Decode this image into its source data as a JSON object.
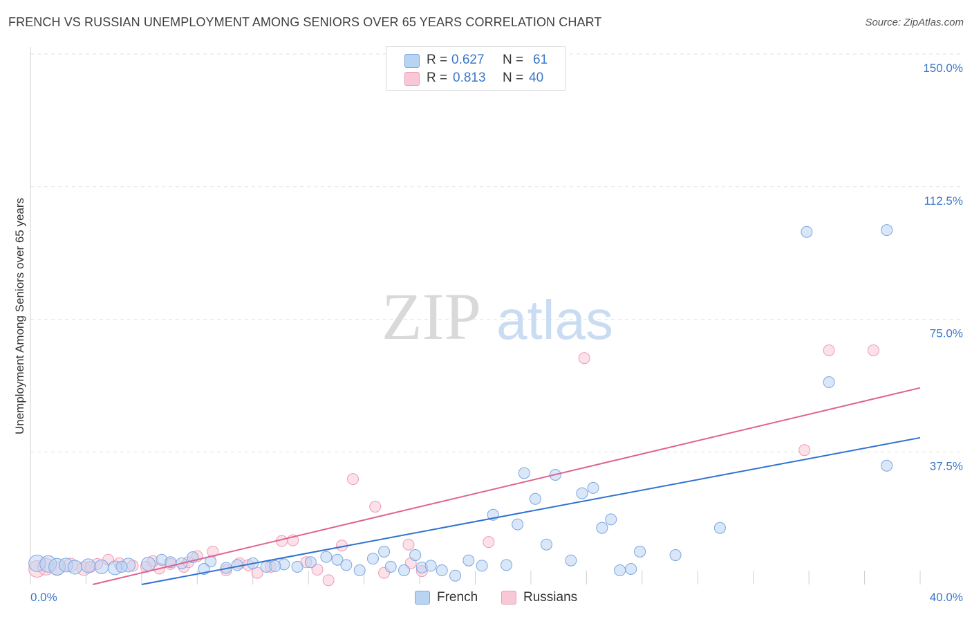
{
  "header": {
    "title": "FRENCH VS RUSSIAN UNEMPLOYMENT AMONG SENIORS OVER 65 YEARS CORRELATION CHART",
    "source": "Source: ZipAtlas.com"
  },
  "legend": {
    "r_label": "R =",
    "n_label": "N =",
    "rows": [
      {
        "r": "0.627",
        "n": "61"
      },
      {
        "r": "0.813",
        "n": "40"
      }
    ]
  },
  "bottom_legend": [
    "French",
    "Russians"
  ],
  "watermark": {
    "zip": "ZIP",
    "atlas": "atlas"
  },
  "colors": {
    "french_fill": "#b9d3f3",
    "french_stroke": "#7aa7e0",
    "french_line": "#2f72d0",
    "russian_fill": "#f9c8d7",
    "russian_stroke": "#ee9cb6",
    "russian_line": "#e0628f",
    "axis_label": "#3a78c8",
    "grid": "#e2e2e2"
  },
  "chart_data": {
    "type": "scatter",
    "title": "FRENCH VS RUSSIAN UNEMPLOYMENT AMONG SENIORS OVER 65 YEARS CORRELATION CHART",
    "xlabel": "",
    "ylabel": "Unemployment Among Seniors over 65 years",
    "xlim": [
      0,
      40
    ],
    "ylim": [
      0,
      150
    ],
    "x_tick_labels": [
      "0.0%",
      "40.0%"
    ],
    "y_ticks": [
      37.5,
      75.0,
      112.5,
      150.0
    ],
    "y_tick_labels": [
      "37.5%",
      "75.0%",
      "112.5%",
      "150.0%"
    ],
    "grid": true,
    "legend_position": "top-center",
    "series": [
      {
        "name": "French",
        "r": 0.627,
        "n": 61,
        "trend": {
          "x": [
            5.0,
            40.0
          ],
          "y": [
            0.0,
            41.5
          ]
        },
        "points": [
          {
            "x": 0.3,
            "y": 6.0,
            "s": 3
          },
          {
            "x": 0.8,
            "y": 5.8,
            "s": 3
          },
          {
            "x": 1.2,
            "y": 5.0,
            "s": 3
          },
          {
            "x": 1.6,
            "y": 5.5,
            "s": 2
          },
          {
            "x": 2.0,
            "y": 4.9,
            "s": 2
          },
          {
            "x": 2.6,
            "y": 5.3,
            "s": 2
          },
          {
            "x": 3.2,
            "y": 5.0,
            "s": 2
          },
          {
            "x": 3.8,
            "y": 4.7,
            "s": 2
          },
          {
            "x": 4.4,
            "y": 5.5,
            "s": 2
          },
          {
            "x": 5.3,
            "y": 5.8,
            "s": 2
          },
          {
            "x": 5.9,
            "y": 7.0,
            "s": 1
          },
          {
            "x": 6.3,
            "y": 6.3,
            "s": 1
          },
          {
            "x": 6.8,
            "y": 6.0,
            "s": 1
          },
          {
            "x": 7.3,
            "y": 7.7,
            "s": 1
          },
          {
            "x": 8.1,
            "y": 6.5,
            "s": 1
          },
          {
            "x": 8.8,
            "y": 4.7,
            "s": 1
          },
          {
            "x": 9.3,
            "y": 5.5,
            "s": 1
          },
          {
            "x": 10.0,
            "y": 6.0,
            "s": 1
          },
          {
            "x": 10.6,
            "y": 5.0,
            "s": 1
          },
          {
            "x": 11.4,
            "y": 5.7,
            "s": 1
          },
          {
            "x": 12.0,
            "y": 5.0,
            "s": 1
          },
          {
            "x": 12.6,
            "y": 6.3,
            "s": 1
          },
          {
            "x": 13.3,
            "y": 7.8,
            "s": 1
          },
          {
            "x": 13.8,
            "y": 7.0,
            "s": 1
          },
          {
            "x": 14.2,
            "y": 5.5,
            "s": 1
          },
          {
            "x": 14.8,
            "y": 4.0,
            "s": 1
          },
          {
            "x": 15.4,
            "y": 7.3,
            "s": 1
          },
          {
            "x": 16.2,
            "y": 5.0,
            "s": 1
          },
          {
            "x": 15.9,
            "y": 9.3,
            "s": 1
          },
          {
            "x": 16.8,
            "y": 4.0,
            "s": 1
          },
          {
            "x": 17.6,
            "y": 4.8,
            "s": 1
          },
          {
            "x": 17.3,
            "y": 8.3,
            "s": 1
          },
          {
            "x": 18.0,
            "y": 5.3,
            "s": 1
          },
          {
            "x": 18.5,
            "y": 4.0,
            "s": 1
          },
          {
            "x": 19.1,
            "y": 2.5,
            "s": 1
          },
          {
            "x": 19.7,
            "y": 6.8,
            "s": 1
          },
          {
            "x": 20.3,
            "y": 5.3,
            "s": 1
          },
          {
            "x": 20.8,
            "y": 19.7,
            "s": 1
          },
          {
            "x": 21.4,
            "y": 5.5,
            "s": 1
          },
          {
            "x": 21.9,
            "y": 17.0,
            "s": 1
          },
          {
            "x": 22.2,
            "y": 31.5,
            "s": 1
          },
          {
            "x": 22.7,
            "y": 24.2,
            "s": 1
          },
          {
            "x": 23.2,
            "y": 11.3,
            "s": 1
          },
          {
            "x": 23.6,
            "y": 31.0,
            "s": 1
          },
          {
            "x": 24.3,
            "y": 6.8,
            "s": 1
          },
          {
            "x": 24.8,
            "y": 25.8,
            "s": 1
          },
          {
            "x": 25.3,
            "y": 27.3,
            "s": 1
          },
          {
            "x": 25.7,
            "y": 16.0,
            "s": 1
          },
          {
            "x": 26.1,
            "y": 18.4,
            "s": 1
          },
          {
            "x": 26.5,
            "y": 4.0,
            "s": 1
          },
          {
            "x": 27.4,
            "y": 9.3,
            "s": 1
          },
          {
            "x": 27.0,
            "y": 4.4,
            "s": 1
          },
          {
            "x": 29.0,
            "y": 8.3,
            "s": 1
          },
          {
            "x": 31.0,
            "y": 16.0,
            "s": 1
          },
          {
            "x": 34.9,
            "y": 99.7,
            "s": 1
          },
          {
            "x": 38.5,
            "y": 100.2,
            "s": 1
          },
          {
            "x": 35.9,
            "y": 57.2,
            "s": 1
          },
          {
            "x": 38.5,
            "y": 33.6,
            "s": 1
          },
          {
            "x": 4.1,
            "y": 5.0,
            "s": 1
          },
          {
            "x": 11.0,
            "y": 5.2,
            "s": 1
          },
          {
            "x": 7.8,
            "y": 4.4,
            "s": 1
          }
        ]
      },
      {
        "name": "Russians",
        "r": 0.813,
        "n": 40,
        "trend": {
          "x": [
            2.8,
            40.0
          ],
          "y": [
            0.0,
            55.6
          ]
        },
        "points": [
          {
            "x": 0.3,
            "y": 4.4,
            "s": 3
          },
          {
            "x": 0.7,
            "y": 5.0,
            "s": 3
          },
          {
            "x": 1.2,
            "y": 4.5,
            "s": 2
          },
          {
            "x": 1.8,
            "y": 5.5,
            "s": 2
          },
          {
            "x": 2.4,
            "y": 4.5,
            "s": 2
          },
          {
            "x": 3.0,
            "y": 5.8,
            "s": 1
          },
          {
            "x": 3.5,
            "y": 7.0,
            "s": 1
          },
          {
            "x": 4.0,
            "y": 6.0,
            "s": 1
          },
          {
            "x": 4.6,
            "y": 5.3,
            "s": 1
          },
          {
            "x": 5.2,
            "y": 5.0,
            "s": 1
          },
          {
            "x": 5.8,
            "y": 4.5,
            "s": 1
          },
          {
            "x": 6.3,
            "y": 5.8,
            "s": 1
          },
          {
            "x": 6.9,
            "y": 5.0,
            "s": 1
          },
          {
            "x": 7.5,
            "y": 8.0,
            "s": 1
          },
          {
            "x": 8.2,
            "y": 9.3,
            "s": 1
          },
          {
            "x": 8.8,
            "y": 4.0,
            "s": 1
          },
          {
            "x": 9.4,
            "y": 6.0,
            "s": 1
          },
          {
            "x": 10.2,
            "y": 3.3,
            "s": 1
          },
          {
            "x": 11.3,
            "y": 12.3,
            "s": 1
          },
          {
            "x": 11.8,
            "y": 12.5,
            "s": 1
          },
          {
            "x": 12.4,
            "y": 6.3,
            "s": 1
          },
          {
            "x": 13.4,
            "y": 1.2,
            "s": 1
          },
          {
            "x": 14.0,
            "y": 11.0,
            "s": 1
          },
          {
            "x": 14.5,
            "y": 29.8,
            "s": 1
          },
          {
            "x": 15.5,
            "y": 22.0,
            "s": 1
          },
          {
            "x": 15.9,
            "y": 3.3,
            "s": 1
          },
          {
            "x": 17.0,
            "y": 11.3,
            "s": 1
          },
          {
            "x": 17.1,
            "y": 6.0,
            "s": 1
          },
          {
            "x": 17.6,
            "y": 3.8,
            "s": 1
          },
          {
            "x": 20.6,
            "y": 12.0,
            "s": 1
          },
          {
            "x": 24.9,
            "y": 64.0,
            "s": 1
          },
          {
            "x": 34.8,
            "y": 38.0,
            "s": 1
          },
          {
            "x": 35.9,
            "y": 66.2,
            "s": 1
          },
          {
            "x": 37.9,
            "y": 66.2,
            "s": 1
          },
          {
            "x": 9.8,
            "y": 5.5,
            "s": 1
          },
          {
            "x": 2.7,
            "y": 5.0,
            "s": 1
          },
          {
            "x": 7.1,
            "y": 6.3,
            "s": 1
          },
          {
            "x": 10.8,
            "y": 5.0,
            "s": 1
          },
          {
            "x": 5.5,
            "y": 6.6,
            "s": 1
          },
          {
            "x": 12.9,
            "y": 4.2,
            "s": 1
          }
        ]
      }
    ]
  }
}
